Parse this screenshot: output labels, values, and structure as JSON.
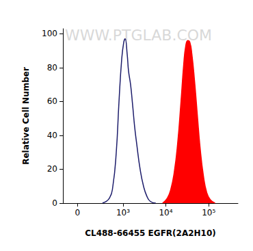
{
  "chart_data": {
    "type": "area",
    "xlabel": "CL488-66455 EGFR(2A2H10)",
    "ylabel": "Relative Cell Number",
    "annotations": [
      "WWW.PTGLAB.COM"
    ],
    "log": "x",
    "grid": false,
    "xlim": [
      -150,
      480000
    ],
    "xticks": [
      0,
      {
        "value": 1000,
        "label": "10³"
      },
      {
        "value": 10000,
        "label": "10⁴"
      },
      {
        "value": 100000,
        "label": "10⁵"
      }
    ],
    "ylim": [
      0,
      103
    ],
    "yticks": [
      0,
      20,
      40,
      60,
      80,
      100
    ],
    "series": [
      {
        "type": "line",
        "color": "#1c1c6b",
        "x": [
          311,
          470,
          569,
          688,
          800,
          928,
          1037,
          1117,
          1249,
          1345,
          1502,
          1676,
          1872,
          2090,
          2512,
          3016,
          3620,
          4350,
          5830
        ],
        "values": [
          0,
          3,
          10,
          30,
          60,
          85,
          95,
          97,
          88,
          78,
          70,
          58,
          45,
          35,
          20,
          10,
          4,
          1,
          0
        ]
      },
      {
        "type": "area",
        "color": "#ff0000",
        "x": [
          8400,
          10850,
          13000,
          15650,
          18800,
          22550,
          26100,
          29150,
          32500,
          36250,
          40450,
          46800,
          54300,
          62800,
          75350,
          90400,
          108600,
          140250
        ],
        "values": [
          0,
          3,
          8,
          18,
          35,
          60,
          82,
          93,
          96,
          95,
          88,
          72,
          52,
          33,
          16,
          6,
          2,
          0
        ]
      }
    ]
  }
}
